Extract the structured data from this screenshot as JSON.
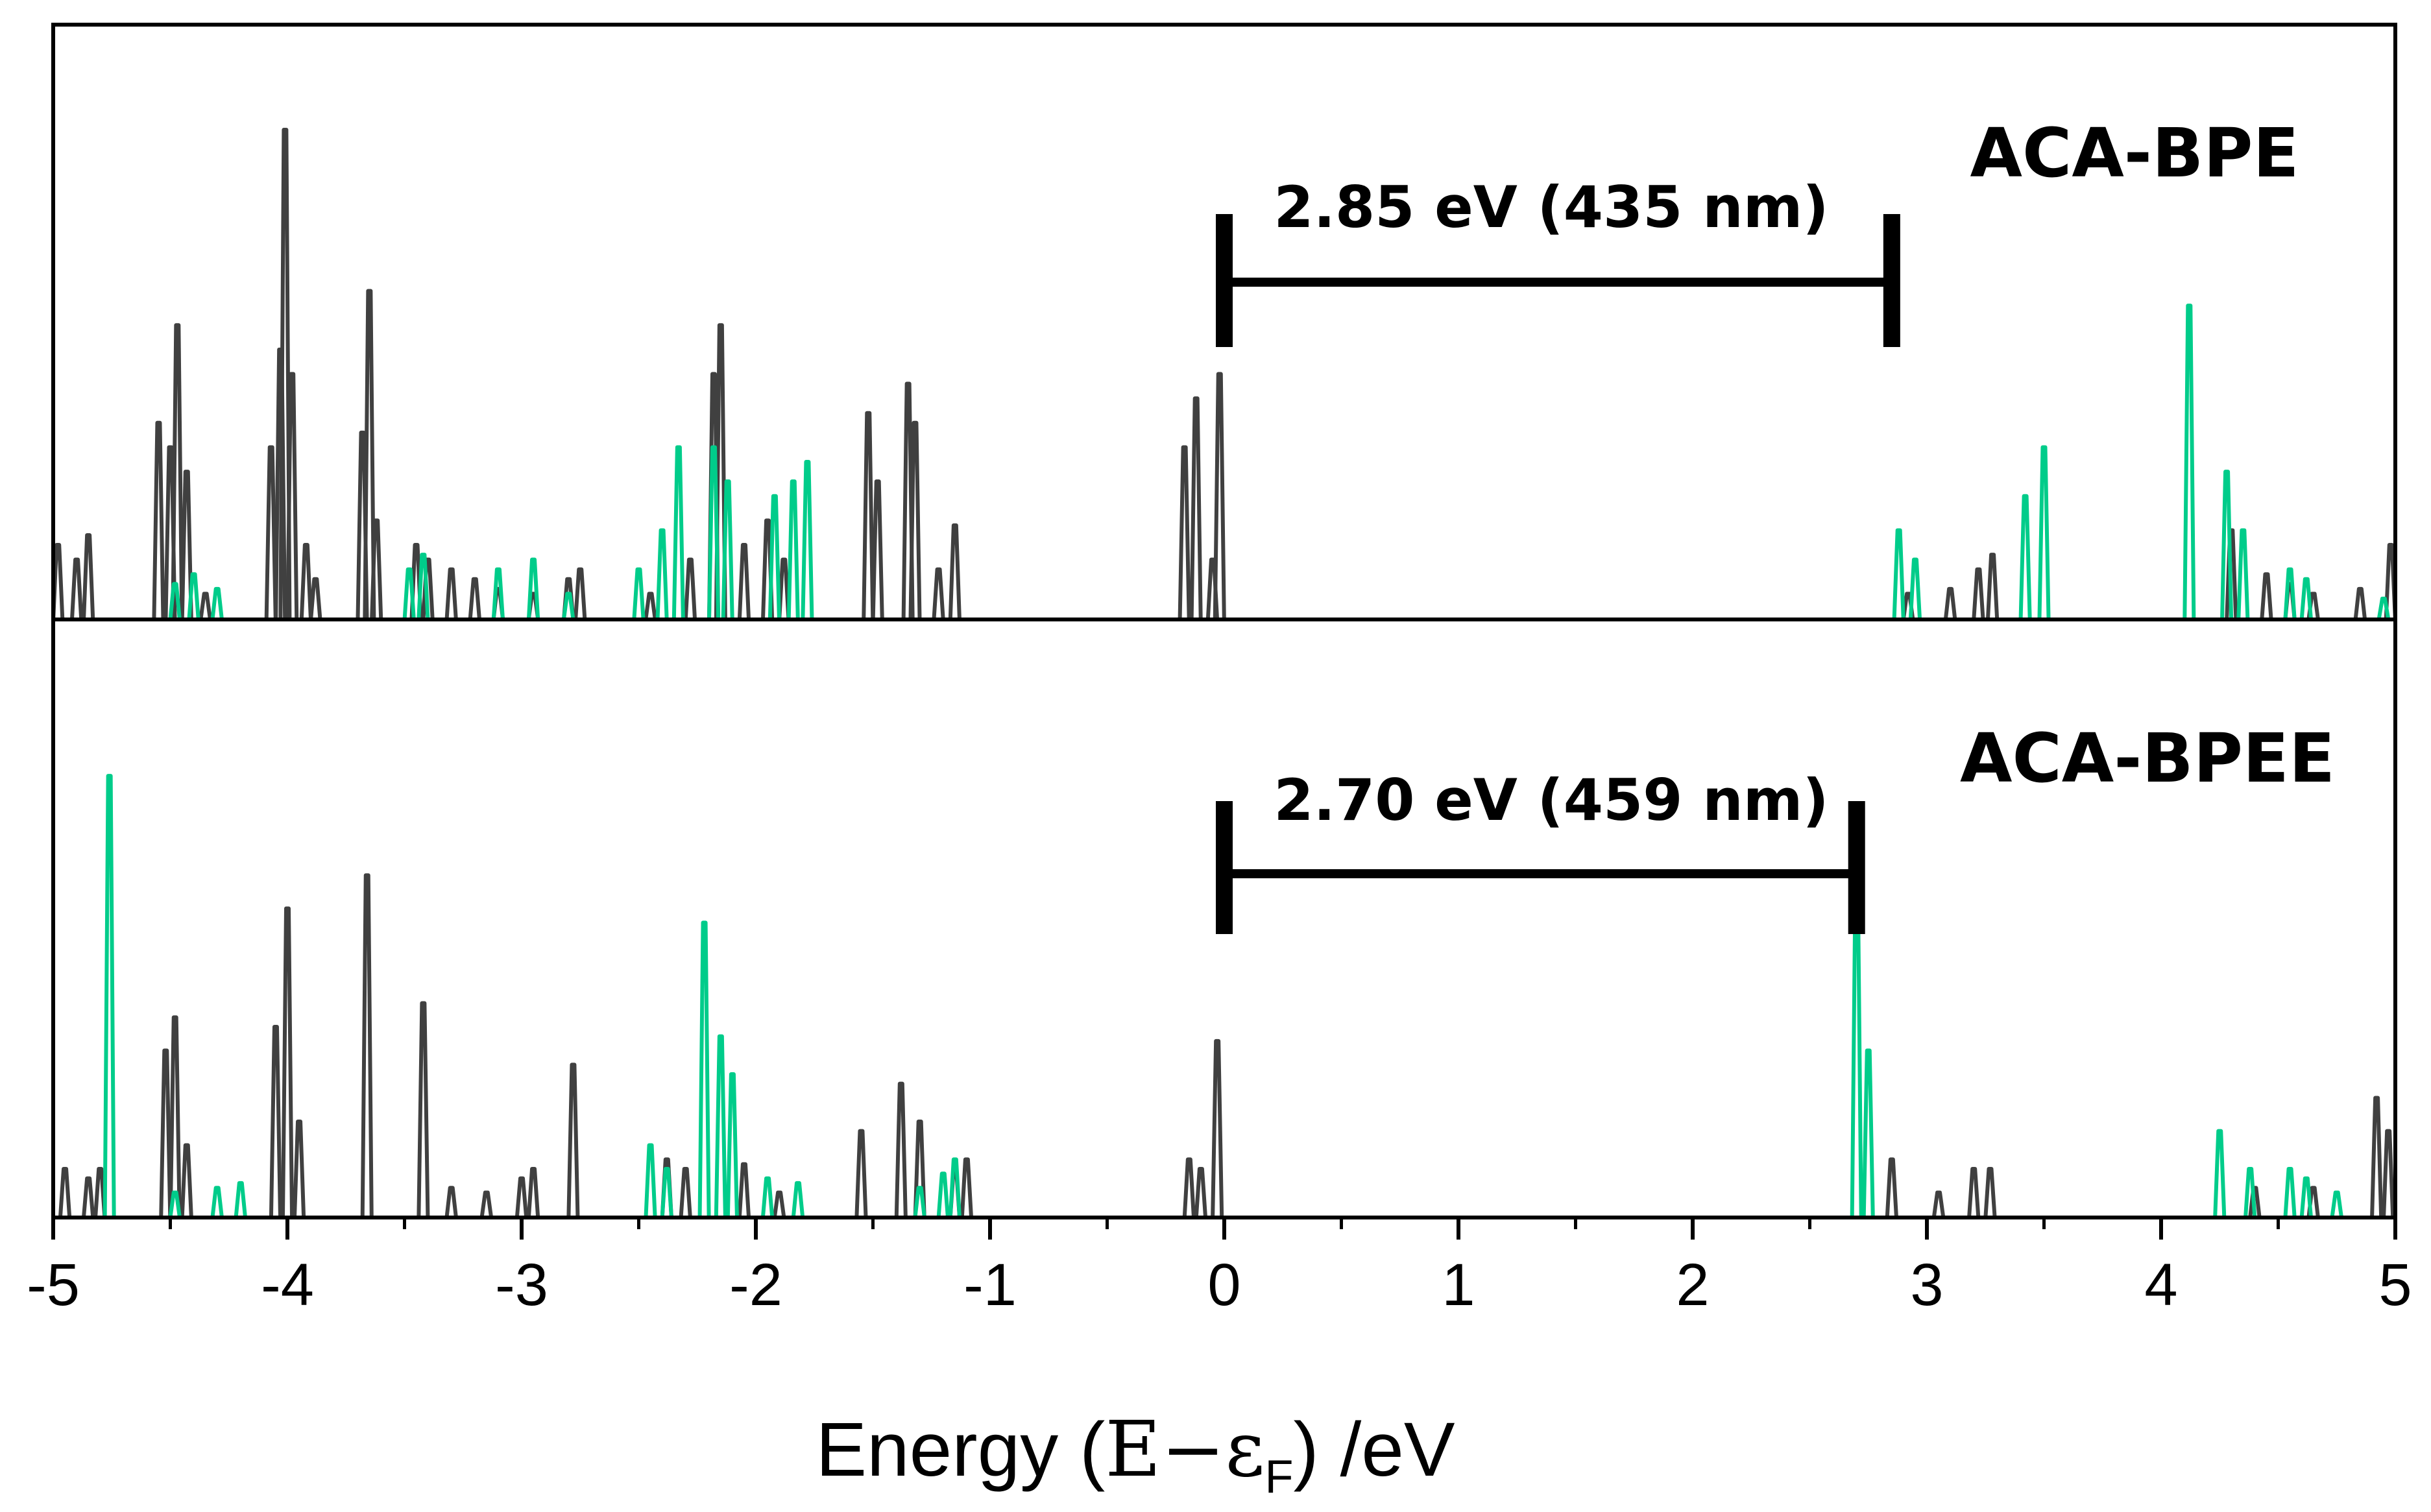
{
  "chart_data": {
    "type": "line",
    "xlabel": {
      "prefix": "Energy (",
      "symbol": "E−ε",
      "subscript": "F",
      "suffix": ") /eV"
    },
    "xlim": [
      -5,
      5
    ],
    "x_ticks": [
      "-5",
      "-4",
      "-3",
      "-2",
      "-1",
      "0",
      "1",
      "2",
      "3",
      "4",
      "5"
    ],
    "colors": {
      "series_a": "#404040",
      "series_b": "#00cc8a",
      "axis": "#000000"
    },
    "panels": [
      {
        "label": "ACA-BPE",
        "gap": {
          "from": 0.0,
          "to": 2.85,
          "text": "2.85 eV (435 nm)"
        },
        "ylim": [
          0,
          1
        ],
        "series": [
          {
            "name": "dark",
            "peaks": [
              [
                -4.98,
                0.15
              ],
              [
                -4.9,
                0.12
              ],
              [
                -4.85,
                0.17
              ],
              [
                -4.55,
                0.4
              ],
              [
                -4.5,
                0.35
              ],
              [
                -4.47,
                0.6
              ],
              [
                -4.43,
                0.3
              ],
              [
                -4.35,
                0.05
              ],
              [
                -4.07,
                0.35
              ],
              [
                -4.03,
                0.55
              ],
              [
                -4.01,
                1.0
              ],
              [
                -3.98,
                0.5
              ],
              [
                -3.92,
                0.15
              ],
              [
                -3.88,
                0.08
              ],
              [
                -3.68,
                0.38
              ],
              [
                -3.65,
                0.67
              ],
              [
                -3.62,
                0.2
              ],
              [
                -3.45,
                0.15
              ],
              [
                -3.4,
                0.12
              ],
              [
                -3.3,
                0.1
              ],
              [
                -3.2,
                0.08
              ],
              [
                -3.1,
                0.06
              ],
              [
                -2.95,
                0.05
              ],
              [
                -2.8,
                0.08
              ],
              [
                -2.75,
                0.1
              ],
              [
                -2.45,
                0.05
              ],
              [
                -2.28,
                0.12
              ],
              [
                -2.18,
                0.5
              ],
              [
                -2.15,
                0.6
              ],
              [
                -2.05,
                0.15
              ],
              [
                -1.95,
                0.2
              ],
              [
                -1.88,
                0.12
              ],
              [
                -1.52,
                0.42
              ],
              [
                -1.48,
                0.28
              ],
              [
                -1.35,
                0.48
              ],
              [
                -1.32,
                0.4
              ],
              [
                -1.22,
                0.1
              ],
              [
                -1.15,
                0.19
              ],
              [
                -0.17,
                0.35
              ],
              [
                -0.12,
                0.45
              ],
              [
                -0.05,
                0.12
              ],
              [
                -0.02,
                0.5
              ],
              [
                2.92,
                0.05
              ],
              [
                3.1,
                0.06
              ],
              [
                3.22,
                0.1
              ],
              [
                3.28,
                0.13
              ],
              [
                4.3,
                0.18
              ],
              [
                4.45,
                0.09
              ],
              [
                4.55,
                0.07
              ],
              [
                4.65,
                0.05
              ],
              [
                4.85,
                0.06
              ],
              [
                4.98,
                0.15
              ]
            ]
          },
          {
            "name": "green",
            "peaks": [
              [
                -4.48,
                0.07
              ],
              [
                -4.4,
                0.09
              ],
              [
                -4.3,
                0.06
              ],
              [
                -3.48,
                0.1
              ],
              [
                -3.42,
                0.13
              ],
              [
                -3.1,
                0.1
              ],
              [
                -2.95,
                0.12
              ],
              [
                -2.8,
                0.05
              ],
              [
                -2.5,
                0.1
              ],
              [
                -2.4,
                0.18
              ],
              [
                -2.33,
                0.35
              ],
              [
                -2.18,
                0.35
              ],
              [
                -2.12,
                0.28
              ],
              [
                -1.92,
                0.25
              ],
              [
                -1.84,
                0.28
              ],
              [
                -1.78,
                0.32
              ],
              [
                2.88,
                0.18
              ],
              [
                2.95,
                0.12
              ],
              [
                3.42,
                0.25
              ],
              [
                3.5,
                0.35
              ],
              [
                4.12,
                0.64
              ],
              [
                4.28,
                0.3
              ],
              [
                4.35,
                0.18
              ],
              [
                4.55,
                0.1
              ],
              [
                4.62,
                0.08
              ],
              [
                4.95,
                0.04
              ]
            ]
          }
        ]
      },
      {
        "label": "ACA-BPEE",
        "gap": {
          "from": 0.0,
          "to": 2.7,
          "text": "2.70 eV (459 nm)"
        },
        "ylim": [
          0,
          1
        ],
        "series": [
          {
            "name": "dark",
            "peaks": [
              [
                -4.95,
                0.1
              ],
              [
                -4.85,
                0.08
              ],
              [
                -4.8,
                0.1
              ],
              [
                -4.52,
                0.35
              ],
              [
                -4.48,
                0.42
              ],
              [
                -4.43,
                0.15
              ],
              [
                -4.05,
                0.4
              ],
              [
                -4.0,
                0.65
              ],
              [
                -3.95,
                0.2
              ],
              [
                -3.66,
                0.72
              ],
              [
                -3.42,
                0.45
              ],
              [
                -3.3,
                0.06
              ],
              [
                -3.15,
                0.05
              ],
              [
                -3.0,
                0.08
              ],
              [
                -2.95,
                0.1
              ],
              [
                -2.78,
                0.32
              ],
              [
                -2.38,
                0.12
              ],
              [
                -2.3,
                0.1
              ],
              [
                -2.05,
                0.11
              ],
              [
                -1.9,
                0.05
              ],
              [
                -1.55,
                0.18
              ],
              [
                -1.38,
                0.28
              ],
              [
                -1.3,
                0.2
              ],
              [
                -1.15,
                0.1
              ],
              [
                -1.1,
                0.12
              ],
              [
                -0.15,
                0.12
              ],
              [
                -0.1,
                0.1
              ],
              [
                -0.03,
                0.37
              ],
              [
                2.85,
                0.12
              ],
              [
                3.05,
                0.05
              ],
              [
                3.2,
                0.1
              ],
              [
                3.27,
                0.1
              ],
              [
                4.4,
                0.06
              ],
              [
                4.65,
                0.06
              ],
              [
                4.92,
                0.25
              ],
              [
                4.97,
                0.18
              ]
            ]
          },
          {
            "name": "green",
            "peaks": [
              [
                -4.76,
                0.93
              ],
              [
                -4.48,
                0.05
              ],
              [
                -4.3,
                0.06
              ],
              [
                -4.2,
                0.07
              ],
              [
                -2.45,
                0.15
              ],
              [
                -2.38,
                0.1
              ],
              [
                -2.22,
                0.62
              ],
              [
                -2.15,
                0.38
              ],
              [
                -2.1,
                0.3
              ],
              [
                -1.95,
                0.08
              ],
              [
                -1.82,
                0.07
              ],
              [
                -1.3,
                0.06
              ],
              [
                -1.2,
                0.09
              ],
              [
                -1.15,
                0.12
              ],
              [
                2.7,
                0.7
              ],
              [
                2.75,
                0.35
              ],
              [
                4.25,
                0.18
              ],
              [
                4.38,
                0.1
              ],
              [
                4.55,
                0.1
              ],
              [
                4.62,
                0.08
              ],
              [
                4.75,
                0.05
              ]
            ]
          }
        ]
      }
    ]
  }
}
